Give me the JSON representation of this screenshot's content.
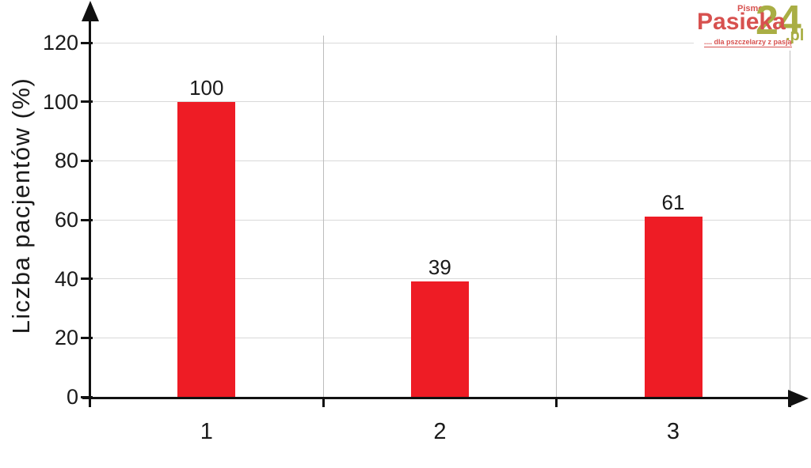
{
  "chart_data": {
    "type": "bar",
    "title": "",
    "xlabel": "",
    "ylabel": "Liczba pacjentów (%)",
    "categories": [
      "1",
      "2",
      "3"
    ],
    "values": [
      100,
      39,
      61
    ],
    "value_labels": [
      "100",
      "39",
      "61"
    ],
    "yticks": [
      0,
      20,
      40,
      60,
      80,
      100,
      120
    ],
    "ytick_labels": [
      "0",
      "20",
      "40",
      "60",
      "80",
      "100",
      "120"
    ],
    "ylim": [
      0,
      130
    ],
    "grid": true,
    "legend_position": "none",
    "bar_color": "#ee1c25",
    "axis_color": "#111111"
  },
  "logo": {
    "pismo": "Pismo",
    "name": "Pasieka",
    "number": "24",
    "tld": ".pl",
    "tagline": ".... dla pszczelarzy z pasją",
    "red": "#d7514f",
    "olive": "#a9ae44"
  }
}
